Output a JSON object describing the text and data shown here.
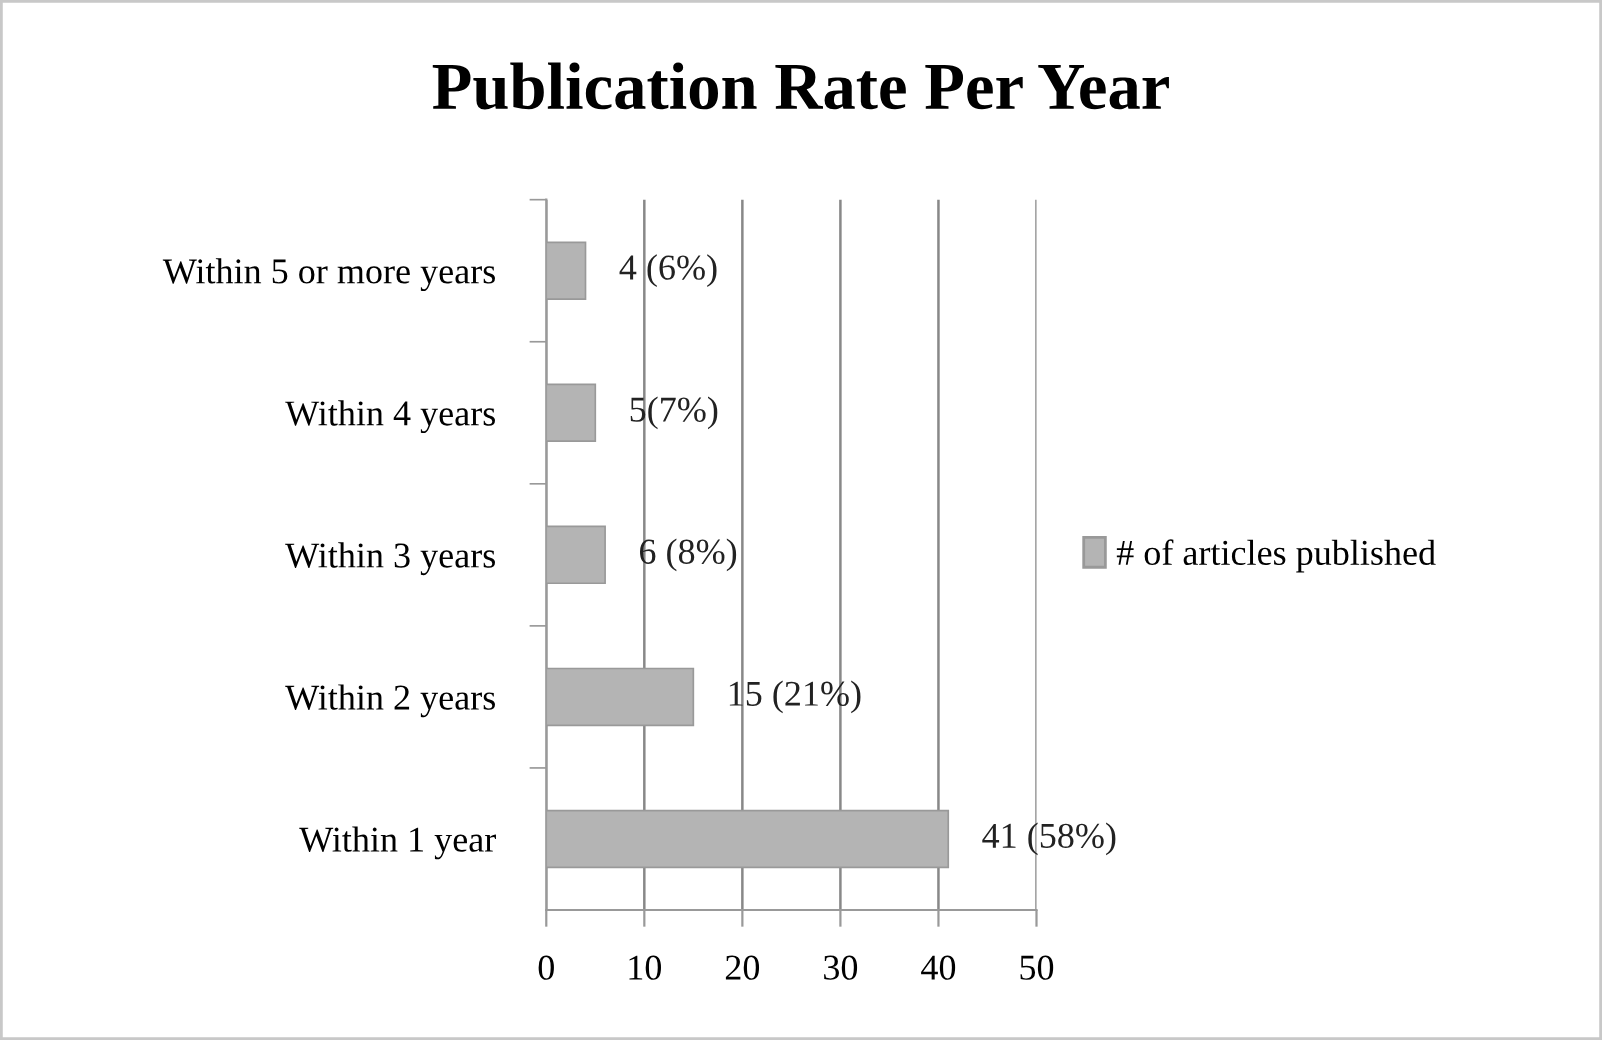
{
  "chart_data": {
    "type": "bar",
    "orientation": "horizontal",
    "title": "Publication Rate Per Year",
    "categories": [
      "Within 5 or more years",
      "Within 4 years",
      "Within 3 years",
      "Within 2 years",
      "Within 1 year"
    ],
    "series": [
      {
        "name": "# of articles published",
        "color": "#b4b4b4",
        "values": [
          4,
          5,
          6,
          15,
          41
        ],
        "value_labels": [
          "4 (6%)",
          "5(7%)",
          "6 (8%)",
          "15 (21%)",
          "41 (58%)"
        ]
      }
    ],
    "xlim": [
      0,
      50
    ],
    "xticks": [
      0,
      10,
      20,
      30,
      40,
      50
    ],
    "grid": "x",
    "legend": "right"
  }
}
